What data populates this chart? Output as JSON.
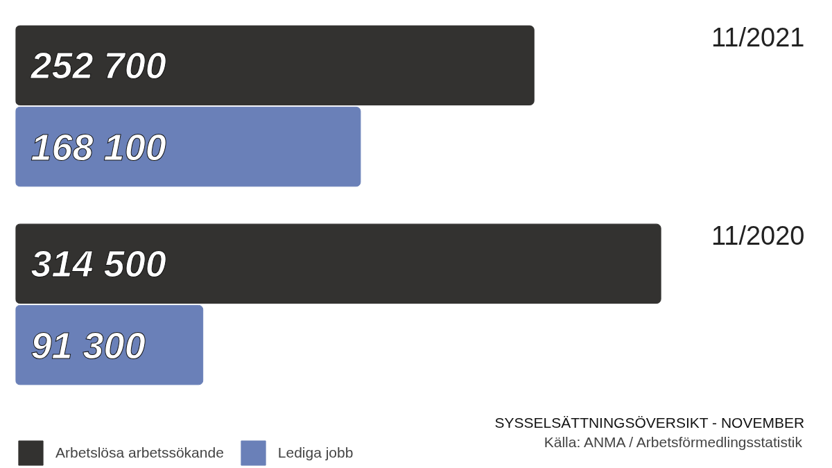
{
  "chart_data": {
    "type": "bar",
    "orientation": "horizontal",
    "categories": [
      "11/2021",
      "11/2020"
    ],
    "series": [
      {
        "name": "Arbetslösa arbetssökande",
        "color": "#333230",
        "values": [
          252700,
          314500
        ],
        "value_labels": [
          "252 700",
          "314 500"
        ]
      },
      {
        "name": "Lediga jobb",
        "color": "#6a80b8",
        "values": [
          168100,
          91300
        ],
        "value_labels": [
          "168 100",
          "91 300"
        ]
      }
    ],
    "tick_labels": false,
    "grid": false,
    "legend": "bottom left",
    "annotations": [
      "SYSSELSÄTTNINGSÖVERSIKT - NOVEMBER",
      "Källa: ANMA / Arbetsförmedlingsstatistik"
    ]
  }
}
